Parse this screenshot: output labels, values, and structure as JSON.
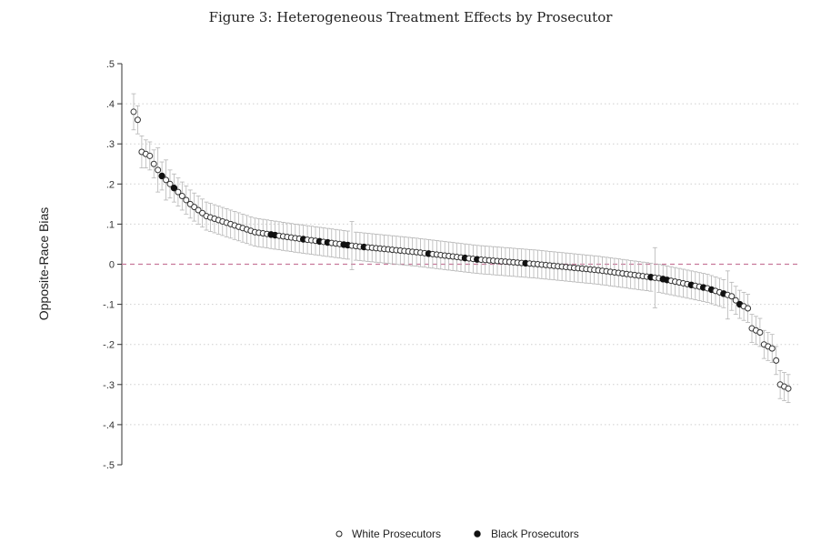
{
  "title": "Figure 3: Heterogeneous Treatment Effects by Prosecutor",
  "chart_data": {
    "type": "scatter",
    "title": "Figure 3: Heterogeneous Treatment Effects by Prosecutor",
    "xlabel": "",
    "ylabel": "Opposite-Race Bias",
    "ylim": [
      -0.5,
      0.5
    ],
    "y_ticks": [
      0.5,
      0.4,
      0.3,
      0.2,
      0.1,
      0,
      -0.1,
      -0.2,
      -0.3,
      -0.4,
      -0.5
    ],
    "y_tick_labels": [
      ".5",
      ".4",
      ".3",
      ".2",
      ".1",
      "0",
      "-.1",
      "-.2",
      "-.3",
      "-.4",
      "-.5"
    ],
    "grid": "horizontal dotted",
    "reference_line": {
      "y": 0,
      "style": "dashed",
      "color": "#c8789a"
    },
    "legend_position": "bottom-center",
    "series_meta": [
      {
        "name": "White Prosecutors",
        "marker": "hollow-circle"
      },
      {
        "name": "Black Prosecutors",
        "marker": "filled-circle"
      }
    ],
    "anchors": [
      [
        0,
        0.38
      ],
      [
        1,
        0.36
      ],
      [
        2,
        0.28
      ],
      [
        4,
        0.27
      ],
      [
        5,
        0.25
      ],
      [
        7,
        0.22
      ],
      [
        10,
        0.19
      ],
      [
        14,
        0.15
      ],
      [
        18,
        0.12
      ],
      [
        24,
        0.1
      ],
      [
        30,
        0.08
      ],
      [
        40,
        0.065
      ],
      [
        55,
        0.045
      ],
      [
        70,
        0.03
      ],
      [
        85,
        0.012
      ],
      [
        100,
        0.0
      ],
      [
        115,
        -0.015
      ],
      [
        130,
        -0.035
      ],
      [
        142,
        -0.06
      ],
      [
        148,
        -0.08
      ],
      [
        150,
        -0.1
      ],
      [
        152,
        -0.11
      ],
      [
        153,
        -0.16
      ],
      [
        155,
        -0.17
      ],
      [
        156,
        -0.2
      ],
      [
        158,
        -0.21
      ],
      [
        159,
        -0.24
      ],
      [
        160,
        -0.3
      ],
      [
        162,
        -0.31
      ]
    ],
    "n_points": 163,
    "black_indices": [
      7,
      10,
      34,
      35,
      42,
      46,
      48,
      52,
      53,
      57,
      73,
      82,
      85,
      97,
      128,
      131,
      132,
      138,
      141,
      143,
      146,
      150
    ],
    "ci_halfwidth": 0.035,
    "ci_exceptions": [
      [
        0,
        0.045
      ],
      [
        2,
        0.04
      ],
      [
        6,
        0.055
      ],
      [
        8,
        0.05
      ],
      [
        54,
        0.06
      ],
      [
        129,
        0.075
      ],
      [
        147,
        0.06
      ]
    ]
  },
  "legend": {
    "white_label": "White Prosecutors",
    "black_label": "Black Prosecutors"
  }
}
